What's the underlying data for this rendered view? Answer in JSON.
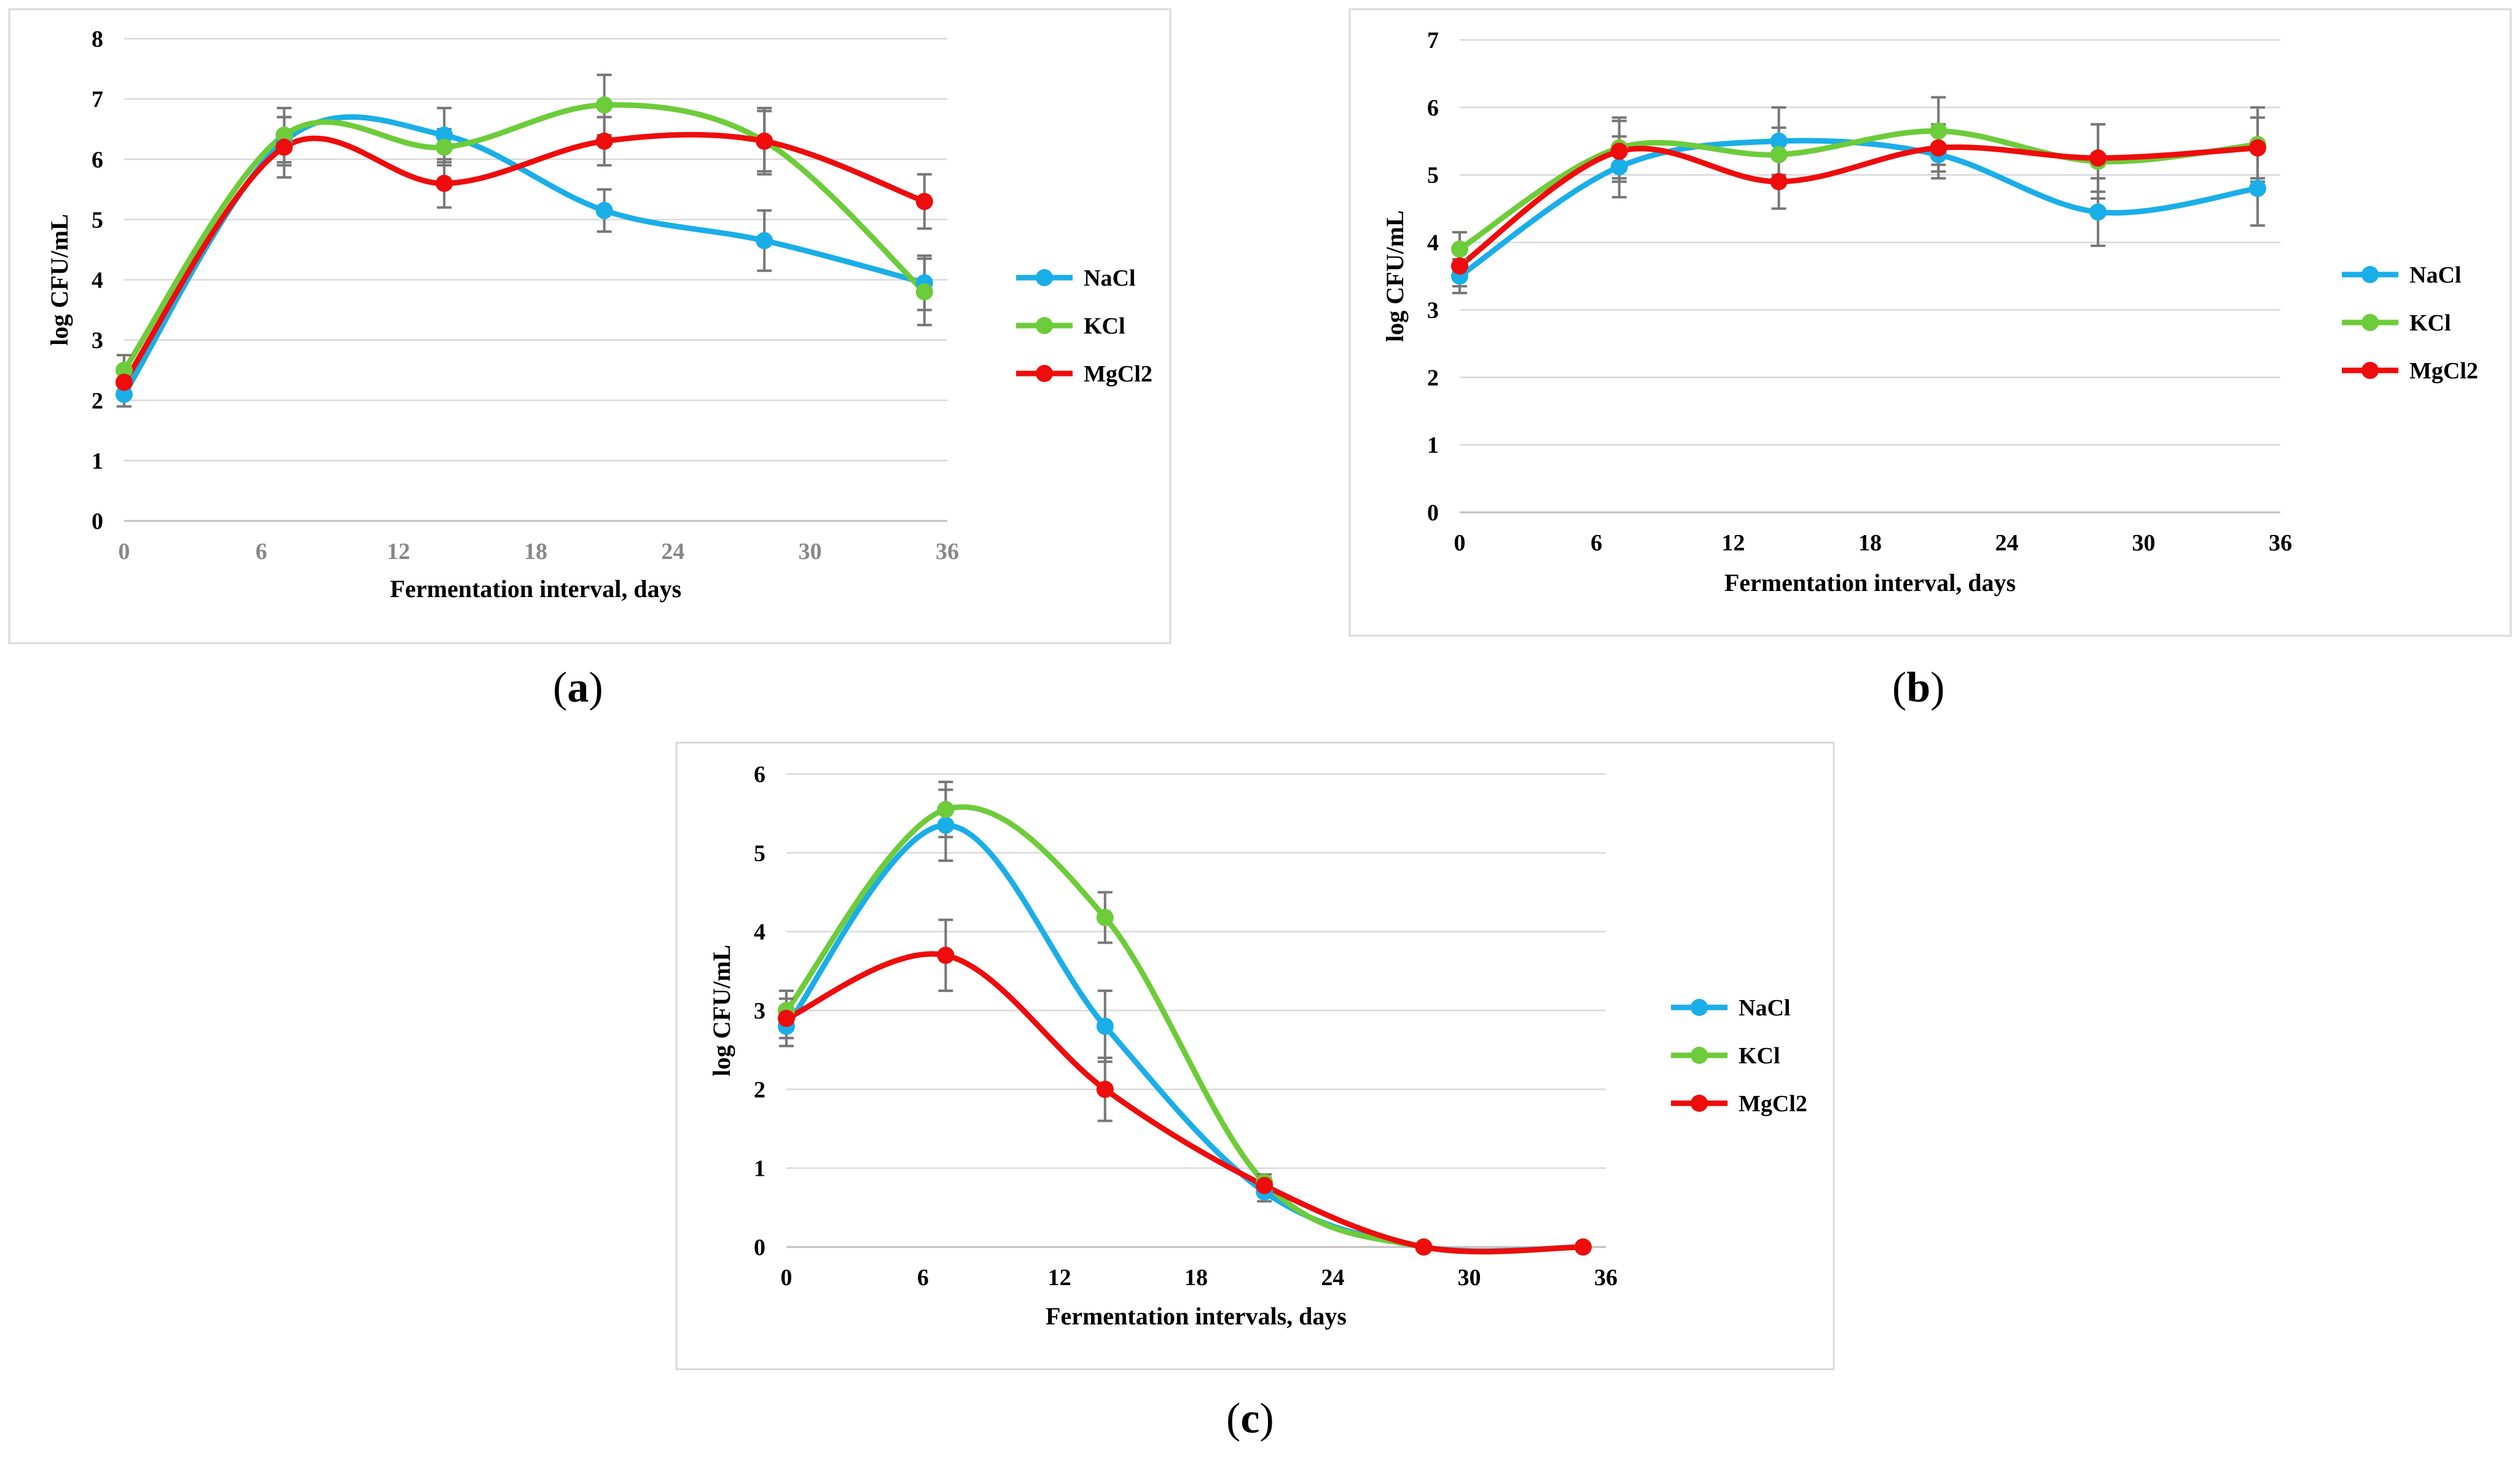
{
  "figure": {
    "panels": [
      {
        "label_open": "(",
        "label_letter": "a",
        "label_close": ")"
      },
      {
        "label_open": "(",
        "label_letter": "b",
        "label_close": ")"
      },
      {
        "label_open": "(",
        "label_letter": "c",
        "label_close": ")"
      }
    ]
  },
  "colors": {
    "NaCl": "#1aaee8",
    "KCl": "#6dcc3a",
    "MgCl2": "#ee0c0c",
    "error_bar": "#777777",
    "grid": "#d9d9d9",
    "frame": "#d9d9d9",
    "axis_text": "#000000"
  },
  "chart_data": [
    {
      "type": "line",
      "smooth": true,
      "xlabel": "Fermentation interval, days",
      "ylabel": "log CFU/mL",
      "xlim": [
        0,
        36
      ],
      "ylim": [
        0,
        8
      ],
      "xticks": [
        0,
        6,
        12,
        18,
        24,
        30,
        36
      ],
      "yticks": [
        0,
        1,
        2,
        3,
        4,
        5,
        6,
        7,
        8
      ],
      "grid": "horizontal",
      "legend": "right",
      "x": [
        0,
        7,
        14,
        21,
        28,
        35
      ],
      "series": [
        {
          "name": "NaCl",
          "values": [
            2.1,
            6.3,
            6.4,
            5.15,
            4.65,
            3.95
          ],
          "errors": [
            0.2,
            0.4,
            0.45,
            0.35,
            0.5,
            0.45
          ]
        },
        {
          "name": "KCl",
          "values": [
            2.5,
            6.4,
            6.2,
            6.9,
            6.3,
            3.8
          ],
          "errors": [
            0.25,
            0.45,
            0.3,
            0.5,
            0.55,
            0.55
          ]
        },
        {
          "name": "MgCl2",
          "values": [
            2.3,
            6.2,
            5.6,
            6.3,
            6.3,
            5.3
          ],
          "errors": [
            0.2,
            0.5,
            0.4,
            0.4,
            0.5,
            0.45
          ]
        }
      ]
    },
    {
      "type": "line",
      "smooth": true,
      "xlabel": "Fermentation interval, days",
      "ylabel": "log CFU/mL",
      "xlim": [
        0,
        36
      ],
      "ylim": [
        0,
        7
      ],
      "xticks": [
        0,
        6,
        12,
        18,
        24,
        30,
        36
      ],
      "yticks": [
        0,
        1,
        2,
        3,
        4,
        5,
        6,
        7
      ],
      "grid": "horizontal",
      "legend": "right",
      "x": [
        0,
        7,
        14,
        21,
        28,
        35
      ],
      "series": [
        {
          "name": "NaCl",
          "values": [
            3.5,
            5.12,
            5.5,
            5.3,
            4.45,
            4.8
          ],
          "errors": [
            0.25,
            0.45,
            0.5,
            0.35,
            0.5,
            0.55
          ]
        },
        {
          "name": "KCl",
          "values": [
            3.9,
            5.4,
            5.3,
            5.65,
            5.2,
            5.45
          ],
          "errors": [
            0.25,
            0.45,
            0.4,
            0.5,
            0.55,
            0.55
          ]
        },
        {
          "name": "MgCl2",
          "values": [
            3.65,
            5.35,
            4.9,
            5.4,
            5.25,
            5.4
          ],
          "errors": [
            0.3,
            0.45,
            0.4,
            0.35,
            0.5,
            0.45
          ]
        }
      ]
    },
    {
      "type": "line",
      "smooth": true,
      "xlabel": "Fermentation intervals, days",
      "ylabel": "log CFU/mL",
      "xlim": [
        0,
        36
      ],
      "ylim": [
        0,
        6
      ],
      "xticks": [
        0,
        6,
        12,
        18,
        24,
        30,
        36
      ],
      "yticks": [
        0,
        1,
        2,
        3,
        4,
        5,
        6
      ],
      "grid": "horizontal",
      "legend": "right",
      "x": [
        0,
        7,
        14,
        21,
        28,
        35
      ],
      "series": [
        {
          "name": "NaCl",
          "values": [
            2.8,
            5.35,
            2.8,
            0.7,
            0.0,
            0.0
          ],
          "errors": [
            0.25,
            0.45,
            0.45,
            0.12,
            0,
            0
          ]
        },
        {
          "name": "KCl",
          "values": [
            3.0,
            5.55,
            4.18,
            0.82,
            0.0,
            0.0
          ],
          "errors": [
            0.25,
            0.35,
            0.32,
            0.1,
            0,
            0
          ]
        },
        {
          "name": "MgCl2",
          "values": [
            2.9,
            3.7,
            2.0,
            0.78,
            0.0,
            0.0
          ],
          "errors": [
            0.25,
            0.45,
            0.4,
            0.1,
            0,
            0
          ]
        }
      ]
    }
  ]
}
